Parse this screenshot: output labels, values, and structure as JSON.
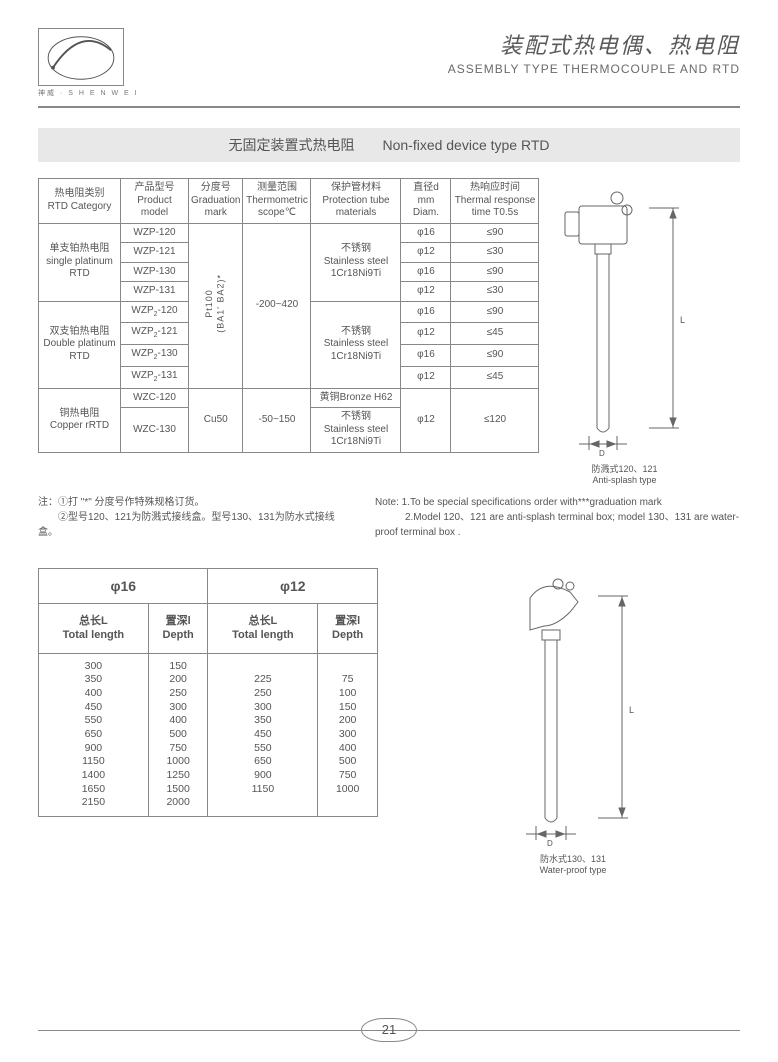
{
  "header": {
    "logo_label": "神威 · S H E N W E I",
    "title_cn": "装配式热电偶、热电阻",
    "title_en": "ASSEMBLY TYPE THERMOCOUPLE AND RTD"
  },
  "section_title": "无固定装置式热电阻　　Non-fixed  device type RTD",
  "table1": {
    "headers": {
      "c1": "热电阻类别\nRTD Category",
      "c2": "产品型号\nProduct model",
      "c3": "分度号\nGraduation\nmark",
      "c4": "测量范围\nThermometric\nscope℃",
      "c5": "保护管材料\nProtection tube\nmaterials",
      "c6": "直径d\nmm Diam.",
      "c7": "热响应时间\nThermal response\ntime T0.5s"
    },
    "cat1": {
      "cn": "单支铂热电阻",
      "en": "single platinum\nRTD"
    },
    "cat2": {
      "cn": "双支铂热电阻",
      "en": "Double platinum\nRTD"
    },
    "cat3": {
      "cn": "铜热电阻",
      "en": "Copper rRTD"
    },
    "models": [
      "WZP-120",
      "WZP-121",
      "WZP-130",
      "WZP-131",
      "WZP₂-120",
      "WZP₂-121",
      "WZP₂-130",
      "WZP₂-131",
      "WZC-120",
      "WZC-130"
    ],
    "grad1": "Pt100\n(BA1' BA2)*",
    "grad2": "Cu50",
    "scope1": "-200~420",
    "scope2": "-50~150",
    "mat1a": "不锈钢",
    "mat1b": "Stainless steel\n1Cr18Ni9Ti",
    "mat3a": "黄铜Bronze H62",
    "mat3b": "不锈钢",
    "mat3c": "Stainless steel\n1Cr18Ni9Ti",
    "diam": [
      "φ16",
      "φ12",
      "φ16",
      "φ12",
      "φ16",
      "φ12",
      "φ16",
      "φ12",
      "φ12"
    ],
    "resp": [
      "≤90",
      "≤30",
      "≤90",
      "≤30",
      "≤90",
      "≤45",
      "≤90",
      "≤45",
      "≤120"
    ]
  },
  "notes": {
    "left1": "注：①打 \"*\" 分度号作特殊规格订货。",
    "left2": "　　②型号120、121为防溅式接线盒。型号130、131为防水式接线盒。",
    "right1": "Note: 1.To be  special specifications order with***graduation mark",
    "right2": "　　　2.Model 120、121 are anti-splash terminal box; model 130、131 are water-proof terminal box ."
  },
  "table2": {
    "h16": "φ16",
    "h12": "φ12",
    "sub_len": "总长L\nTotal length",
    "sub_dep": "置深l\nDepth",
    "c16_len": [
      "300",
      "350",
      "400",
      "450",
      "550",
      "650",
      "900",
      "1150",
      "1400",
      "1650",
      "2150"
    ],
    "c16_dep": [
      "150",
      "200",
      "250",
      "300",
      "400",
      "500",
      "750",
      "1000",
      "1250",
      "1500",
      "2000"
    ],
    "c12_len": [
      "225",
      "250",
      "300",
      "350",
      "450",
      "550",
      "650",
      "900",
      "1150"
    ],
    "c12_dep": [
      "75",
      "100",
      "150",
      "200",
      "300",
      "400",
      "500",
      "750",
      "1000"
    ]
  },
  "diagram1": {
    "cn": "防溅式120、121",
    "en": "Anti-splash type"
  },
  "diagram2": {
    "cn": "防水式130、131",
    "en": "Water-proof type"
  },
  "page": "21"
}
